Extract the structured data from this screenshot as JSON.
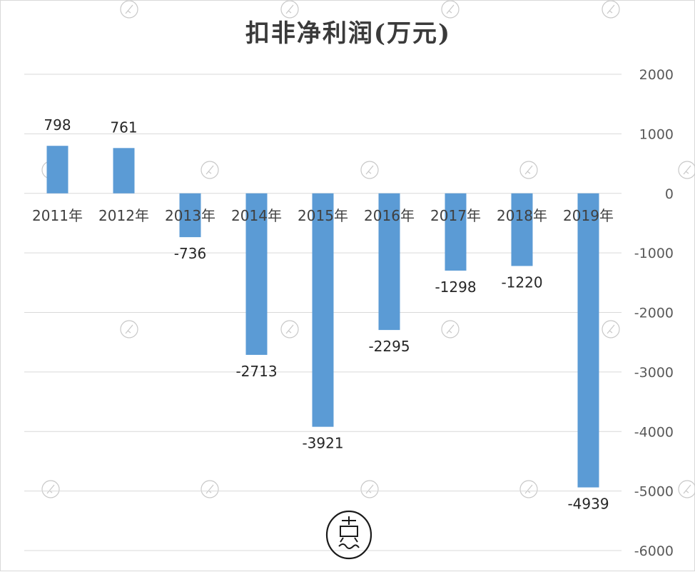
{
  "chart_data": {
    "type": "bar",
    "title": "扣非净利润(万元)",
    "categories": [
      "2011年",
      "2012年",
      "2013年",
      "2014年",
      "2015年",
      "2016年",
      "2017年",
      "2018年",
      "2019年"
    ],
    "values": [
      798,
      761,
      -736,
      -2713,
      -3921,
      -2295,
      -1298,
      -1220,
      -4939
    ],
    "data_labels": [
      "798",
      "761",
      "-736",
      "-2713",
      "-3921",
      "-2295",
      "-1298",
      "-1220",
      "-4939"
    ],
    "ylim": [
      -6000,
      2000
    ],
    "yticks": [
      "2000",
      "1000",
      "0",
      "-1000",
      "-2000",
      "-3000",
      "-4000",
      "-5000",
      "-6000"
    ],
    "y_axis_position": "right",
    "grid": true,
    "legend": "none",
    "bar_color": "#5b9bd5"
  },
  "colors": {
    "bar": "#5b9bd5",
    "grid": "#d9d9d9"
  }
}
